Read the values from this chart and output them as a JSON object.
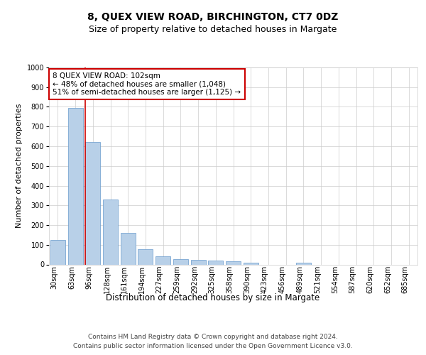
{
  "title": "8, QUEX VIEW ROAD, BIRCHINGTON, CT7 0DZ",
  "subtitle": "Size of property relative to detached houses in Margate",
  "xlabel": "Distribution of detached houses by size in Margate",
  "ylabel": "Number of detached properties",
  "categories": [
    "30sqm",
    "63sqm",
    "96sqm",
    "128sqm",
    "161sqm",
    "194sqm",
    "227sqm",
    "259sqm",
    "292sqm",
    "325sqm",
    "358sqm",
    "390sqm",
    "423sqm",
    "456sqm",
    "489sqm",
    "521sqm",
    "554sqm",
    "587sqm",
    "620sqm",
    "652sqm",
    "685sqm"
  ],
  "values": [
    125,
    795,
    620,
    328,
    162,
    78,
    40,
    27,
    24,
    20,
    17,
    10,
    0,
    0,
    9,
    0,
    0,
    0,
    0,
    0,
    0
  ],
  "bar_color": "#b8d0e8",
  "bar_edgecolor": "#6699cc",
  "annotation_line1": "8 QUEX VIEW ROAD: 102sqm",
  "annotation_line2": "← 48% of detached houses are smaller (1,048)",
  "annotation_line3": "51% of semi-detached houses are larger (1,125) →",
  "annotation_box_facecolor": "#ffffff",
  "annotation_box_edgecolor": "#cc0000",
  "vline_color": "#cc0000",
  "vline_x_index": 2,
  "ylim": [
    0,
    1000
  ],
  "yticks": [
    0,
    100,
    200,
    300,
    400,
    500,
    600,
    700,
    800,
    900,
    1000
  ],
  "grid_color": "#cccccc",
  "background_color": "#ffffff",
  "footer_line1": "Contains HM Land Registry data © Crown copyright and database right 2024.",
  "footer_line2": "Contains public sector information licensed under the Open Government Licence v3.0.",
  "title_fontsize": 10,
  "subtitle_fontsize": 9,
  "xlabel_fontsize": 8.5,
  "ylabel_fontsize": 8,
  "annot_fontsize": 7.5,
  "tick_fontsize": 7,
  "footer_fontsize": 6.5
}
